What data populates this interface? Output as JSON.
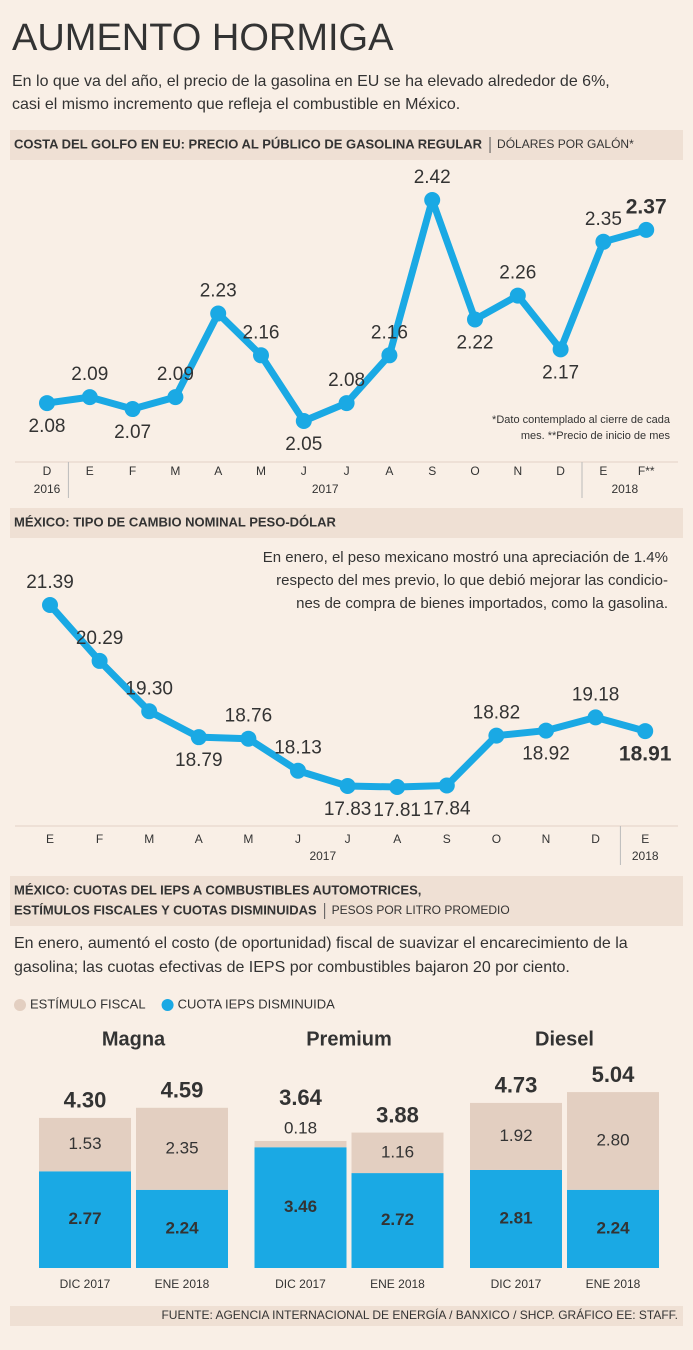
{
  "title": "AUMENTO HORMIGA",
  "subtitle": [
    "En lo que va del año, el precio de la gasolina en EU se ha elevado alrededor de 6%,",
    "casi el mismo incremento que refleja el combustible en México."
  ],
  "chart_data": [
    {
      "type": "line",
      "title": [
        "COSTA DEL GOLFO EN EU: PRECIO AL PÚBLICO DE GASOLINA REGULAR"
      ],
      "unit": "DÓLARES POR GALÓN*",
      "categories": [
        "D",
        "E",
        "F",
        "M",
        "A",
        "M",
        "J",
        "J",
        "A",
        "S",
        "O",
        "N",
        "D",
        "E",
        "F**"
      ],
      "years": [
        "2016",
        "2017",
        null,
        null,
        null,
        null,
        null,
        null,
        null,
        null,
        null,
        null,
        null,
        "2018",
        null
      ],
      "values": [
        2.08,
        2.09,
        2.07,
        2.09,
        2.23,
        2.16,
        2.05,
        2.08,
        2.16,
        2.42,
        2.22,
        2.26,
        2.17,
        2.35,
        2.37
      ],
      "color": "#1aa9e4",
      "note": [
        "*Dato contemplado al cierre de cada",
        "mes. **Precio de inicio de mes"
      ]
    },
    {
      "type": "line",
      "title": [
        "MÉXICO: TIPO DE CAMBIO NOMINAL PESO-DÓLAR"
      ],
      "categories": [
        "E",
        "F",
        "M",
        "A",
        "M",
        "J",
        "J",
        "A",
        "S",
        "O",
        "N",
        "D",
        "E"
      ],
      "years": [
        "2017",
        null,
        null,
        null,
        null,
        null,
        null,
        null,
        null,
        null,
        null,
        null,
        "2018"
      ],
      "values": [
        21.39,
        20.29,
        19.3,
        18.79,
        18.76,
        18.13,
        17.83,
        17.81,
        17.84,
        18.82,
        18.92,
        19.18,
        18.91
      ],
      "value_labels": [
        "21.39",
        "20.29",
        "19.30",
        "18.79",
        "18.76",
        "18.13",
        "17.83",
        "17.81",
        "17.84",
        "18.82",
        "18.92",
        "19.18",
        "18.91"
      ],
      "color": "#1aa9e4",
      "annotation": [
        "En enero, el peso mexicano mostró una apreciación de 1.4%",
        "respecto del mes previo, lo que debió mejorar las condicio-",
        "nes de compra de bienes importados, como la gasolina."
      ]
    },
    {
      "type": "stacked_bar",
      "title": [
        "MÉXICO: CUOTAS DEL IEPS A COMBUSTIBLES AUTOMOTRICES,",
        "ESTÍMULOS FISCALES Y CUOTAS DISMINUIDAS"
      ],
      "unit": "PESOS POR LITRO PROMEDIO",
      "description": [
        "En enero, aumentó el costo (de oportunidad) fiscal de suavizar el encarecimiento de la",
        "gasolina; las cuotas efectivas de IEPS por combustibles bajaron 20 por ciento."
      ],
      "groups": [
        "Magna",
        "Premium",
        "Diesel"
      ],
      "categories": [
        "DIC 2017",
        "ENE 2018",
        "DIC 2017",
        "ENE 2018",
        "DIC 2017",
        "ENE 2018"
      ],
      "series": [
        {
          "name": "ESTÍMULO FISCAL",
          "color": "#e3cfc1",
          "values": [
            1.53,
            2.35,
            0.18,
            1.16,
            1.92,
            2.8
          ],
          "value_labels": [
            "1.53",
            "2.35",
            "0.18",
            "1.16",
            "1.92",
            "2.80"
          ]
        },
        {
          "name": "CUOTA IEPS DISMINUIDA",
          "color": "#1aa9e4",
          "values": [
            2.77,
            2.24,
            3.46,
            2.72,
            2.81,
            2.24
          ]
        }
      ],
      "totals": [
        4.3,
        4.59,
        3.64,
        3.88,
        4.73,
        5.04
      ],
      "total_labels": [
        "4.30",
        "4.59",
        "3.64",
        "3.88",
        "4.73",
        "5.04"
      ]
    }
  ],
  "source": "FUENTE: AGENCIA INTERNACIONAL DE ENERGÍA / BANXICO / SHCP. GRÁFICO EE: STAFF."
}
